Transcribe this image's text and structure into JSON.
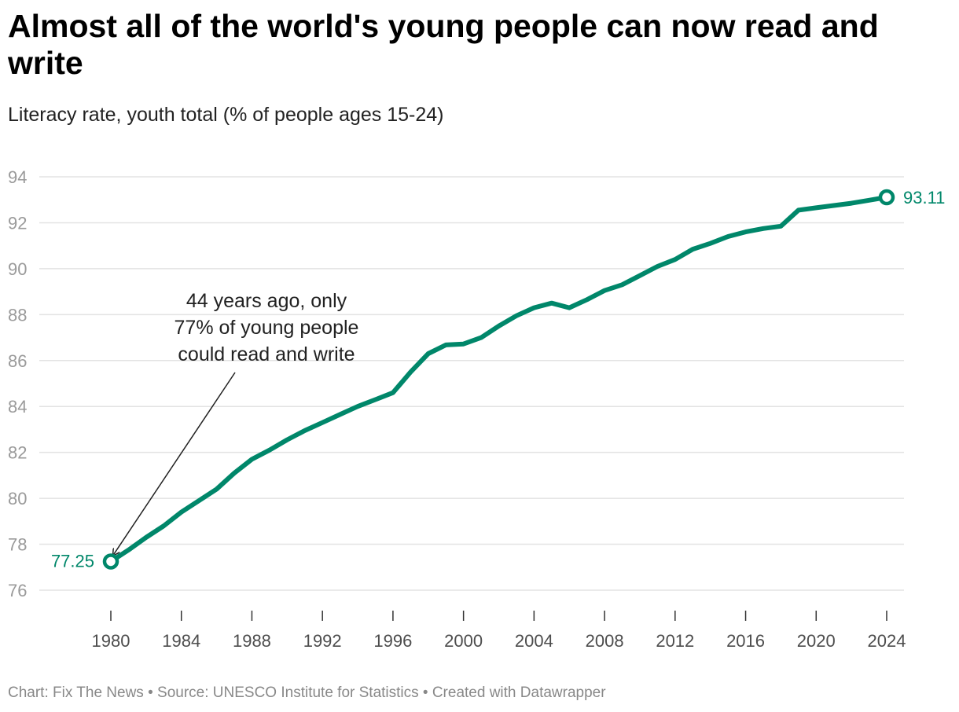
{
  "header": {
    "title": "Almost all of the world's young people can now read and write",
    "subtitle": "Literacy rate, youth total (% of people ages 15-24)"
  },
  "chart_data": {
    "type": "line",
    "title": "Almost all of the world's young people can now read and write",
    "subtitle": "Literacy rate, youth total (% of people ages 15-24)",
    "xlabel": "",
    "ylabel": "",
    "ylim": [
      76,
      94
    ],
    "xlim": [
      1980,
      2024
    ],
    "y_ticks": [
      76,
      78,
      80,
      82,
      84,
      86,
      88,
      90,
      92,
      94
    ],
    "x_ticks": [
      1980,
      1984,
      1988,
      1992,
      1996,
      2000,
      2004,
      2008,
      2012,
      2016,
      2020,
      2024
    ],
    "grid": true,
    "color": "#00876a",
    "series": [
      {
        "name": "Literacy rate, youth total",
        "x": [
          1980,
          1981,
          1982,
          1983,
          1984,
          1985,
          1986,
          1987,
          1988,
          1989,
          1990,
          1991,
          1992,
          1993,
          1994,
          1995,
          1996,
          1997,
          1998,
          1999,
          2000,
          2001,
          2002,
          2003,
          2004,
          2005,
          2006,
          2007,
          2008,
          2009,
          2010,
          2011,
          2012,
          2013,
          2014,
          2015,
          2016,
          2017,
          2018,
          2019,
          2020,
          2021,
          2022,
          2023,
          2024
        ],
        "values": [
          77.25,
          77.75,
          78.3,
          78.8,
          79.4,
          79.9,
          80.4,
          81.1,
          81.7,
          82.1,
          82.55,
          82.95,
          83.3,
          83.65,
          84.0,
          84.3,
          84.6,
          85.5,
          86.3,
          86.68,
          86.72,
          87.0,
          87.5,
          87.95,
          88.3,
          88.5,
          88.3,
          88.65,
          89.05,
          89.3,
          89.7,
          90.1,
          90.4,
          90.85,
          91.1,
          91.4,
          91.6,
          91.75,
          91.85,
          92.55,
          92.65,
          92.75,
          92.85,
          92.98,
          93.11
        ]
      }
    ],
    "markers": [
      {
        "year": 1980,
        "value": 77.25,
        "label": "77.25"
      },
      {
        "year": 2024,
        "value": 93.11,
        "label": "93.11"
      }
    ],
    "annotation": {
      "lines": [
        "44 years ago, only",
        "77% of young people",
        "could read and write"
      ],
      "points_to_year": 1980
    }
  },
  "footer": {
    "text": "Chart: Fix The News • Source: UNESCO Institute for Statistics • Created with Datawrapper"
  }
}
